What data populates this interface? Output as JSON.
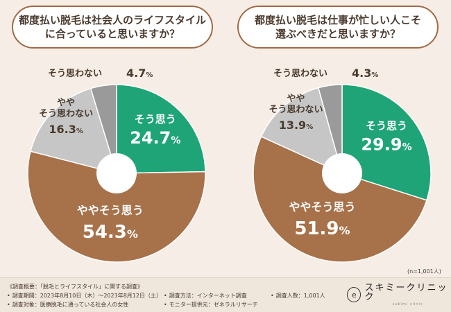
{
  "colors": {
    "soo_omou": "#1ea477",
    "yaya_soo_omou": "#a7714a",
    "yaya_soo_omowanai": "#c6c6c6",
    "soo_omowanai": "#9a9a9a",
    "background": "#f6eee6"
  },
  "chart_data": [
    {
      "type": "pie",
      "title": "都度払い脱毛は社会人のライフスタイル\nに合っていると思いますか？",
      "series": [
        {
          "name": "そう思う",
          "value": 24.7
        },
        {
          "name": "ややそう思う",
          "value": 54.3
        },
        {
          "name": "ややそう思わない",
          "value": 16.3
        },
        {
          "name": "そう思わない",
          "value": 4.7
        }
      ]
    },
    {
      "type": "pie",
      "title": "都度払い脱毛は仕事が忙しい人こそ\n選ぶべきだと思いますか？",
      "series": [
        {
          "name": "そう思う",
          "value": 29.9
        },
        {
          "name": "ややそう思う",
          "value": 51.9
        },
        {
          "name": "ややそう思わない",
          "value": 13.9
        },
        {
          "name": "そう思わない",
          "value": 4.3
        }
      ]
    }
  ],
  "labels": {
    "soo_omou": "そう思う",
    "yaya_soo_omou": "ややそう思う",
    "yaya_line1": "やや",
    "yaya_line2": "そう思わない",
    "soo_omowanai": "そう思わない",
    "percent_sign": "%"
  },
  "sample_size": "(n=1,001人)",
  "footer": {
    "survey_title": "《調査概要：「脱毛とライフスタイル」に関する調査》",
    "period": "調査期間：2023年8月10日（木）〜2023年8月12日（土）",
    "target": "調査対象：医療脱毛に通っている社会人の女性",
    "method": "調査方法：インターネット調査",
    "provider": "モニター提供元：ゼネラルリサーチ",
    "count": "調査人数：1,001人"
  },
  "logo": {
    "mark": "e",
    "name": "スキミークリニック",
    "sub": "sukimi clinic"
  }
}
